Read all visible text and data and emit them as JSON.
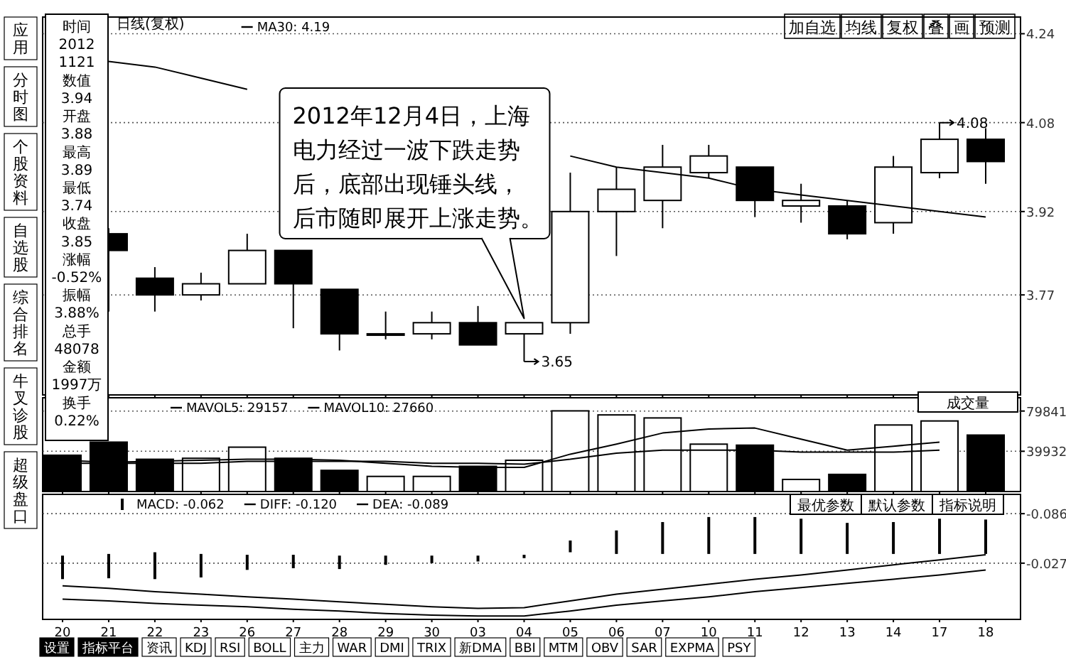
{
  "chart_data": [
    {
      "type": "candlestick",
      "title": "日线(复权)",
      "categories": [
        "20",
        "21",
        "22",
        "23",
        "26",
        "27",
        "28",
        "29",
        "30",
        "03",
        "04",
        "05",
        "06",
        "07",
        "10",
        "11",
        "12",
        "13",
        "14",
        "17",
        "18"
      ],
      "ohlc": [
        null,
        [
          3.88,
          3.89,
          3.74,
          3.85
        ],
        [
          3.8,
          3.82,
          3.74,
          3.77
        ],
        [
          3.77,
          3.81,
          3.76,
          3.79
        ],
        [
          3.79,
          3.88,
          3.79,
          3.85
        ],
        [
          3.85,
          3.85,
          3.71,
          3.79
        ],
        [
          3.78,
          3.78,
          3.67,
          3.7
        ],
        [
          3.7,
          3.74,
          3.69,
          3.7
        ],
        [
          3.7,
          3.74,
          3.69,
          3.72
        ],
        [
          3.72,
          3.75,
          3.68,
          3.68
        ],
        [
          3.7,
          3.72,
          3.65,
          3.72
        ],
        [
          3.72,
          3.99,
          3.7,
          3.92
        ],
        [
          3.92,
          4.0,
          3.84,
          3.96
        ],
        [
          3.94,
          4.04,
          3.89,
          4.0
        ],
        [
          3.99,
          4.04,
          3.98,
          4.02
        ],
        [
          4.0,
          4.0,
          3.91,
          3.94
        ],
        [
          3.93,
          3.97,
          3.9,
          3.94
        ],
        [
          3.93,
          3.94,
          3.87,
          3.88
        ],
        [
          3.9,
          4.02,
          3.88,
          4.0
        ],
        [
          3.99,
          4.08,
          3.98,
          4.05
        ],
        [
          4.05,
          4.07,
          3.97,
          4.01
        ]
      ],
      "series": [
        {
          "name": "MA30: 4.19",
          "type": "line",
          "color": "#000000",
          "values": [
            null,
            4.19,
            4.18,
            4.16,
            4.14,
            null,
            null,
            null,
            null,
            null,
            null,
            4.02,
            4.0,
            3.99,
            3.98,
            3.96,
            3.95,
            3.94,
            3.93,
            3.92,
            3.91
          ]
        }
      ],
      "ylim": [
        3.59,
        4.27
      ],
      "yticks": [
        3.77,
        3.92,
        4.08,
        4.24
      ],
      "grid": "y",
      "legend": "top left",
      "tick_labels": "y",
      "annotations": [
        "2012年12月4日，上海电力经过一波下跌走势后，底部出现锤头线，后市随即展开上涨走势。",
        {
          "text": "3.65",
          "x": "04",
          "y": 3.65
        },
        {
          "text": "4.08",
          "x": "17",
          "y": 4.08
        }
      ]
    },
    {
      "type": "bar",
      "categories": [
        "20",
        "21",
        "22",
        "23",
        "26",
        "27",
        "28",
        "29",
        "30",
        "03",
        "04",
        "05",
        "06",
        "07",
        "10",
        "11",
        "12",
        "13",
        "14",
        "17",
        "18"
      ],
      "series": [
        {
          "type": "bar",
          "values": [
            36000,
            49000,
            32000,
            33000,
            44000,
            33000,
            21000,
            15000,
            15000,
            25000,
            31000,
            80000,
            76000,
            73000,
            47000,
            46000,
            12000,
            17000,
            66000,
            70000,
            56000
          ],
          "colors": [
            "#000000",
            "#000000",
            "#000000",
            "#ffffff",
            "#ffffff",
            "#000000",
            "#000000",
            "#ffffff",
            "#ffffff",
            "#000000",
            "#ffffff",
            "#ffffff",
            "#ffffff",
            "#ffffff",
            "#ffffff",
            "#000000",
            "#ffffff",
            "#000000",
            "#ffffff",
            "#ffffff",
            "#000000"
          ]
        },
        {
          "name": "MAVOL5: 29157",
          "type": "line",
          "color": "#000000",
          "values": [
            31000,
            29000,
            30000,
            31000,
            32000,
            32000,
            31000,
            28000,
            25000,
            24000,
            24000,
            37000,
            47000,
            58000,
            62000,
            63000,
            52000,
            41000,
            45000,
            49000,
            null
          ]
        },
        {
          "name": "MAVOL10: 27660",
          "type": "line",
          "color": "#000000",
          "values": [
            28000,
            28000,
            28000,
            28000,
            30000,
            30000,
            30000,
            30000,
            28000,
            28000,
            27000,
            32000,
            38000,
            41000,
            41000,
            41000,
            39000,
            39000,
            39000,
            41000,
            null
          ]
        }
      ],
      "ylim": [
        0,
        93000
      ],
      "yticks": [
        39932,
        79841
      ],
      "grid": "y",
      "legend": "top left",
      "tick_labels": "y",
      "annotations": [
        "成交量"
      ]
    },
    {
      "type": "bar",
      "categories": [
        "20",
        "21",
        "22",
        "23",
        "26",
        "27",
        "28",
        "29",
        "30",
        "03",
        "04",
        "05",
        "06",
        "07",
        "10",
        "11",
        "12",
        "13",
        "14",
        "17",
        "18"
      ],
      "series": [
        {
          "name": "MACD: -0.062",
          "type": "bar",
          "color": "#000000",
          "base": [
            -0.036,
            -0.038,
            -0.04,
            -0.038,
            -0.037,
            -0.037,
            -0.036,
            -0.036,
            -0.036,
            -0.036,
            -0.037,
            -0.04,
            -0.038,
            -0.038,
            -0.038,
            -0.038,
            -0.038,
            -0.038,
            -0.038,
            -0.038,
            -0.038
          ],
          "values": [
            0.028,
            0.029,
            0.032,
            0.028,
            0.018,
            0.016,
            0.016,
            0.011,
            0.009,
            0.007,
            0.004,
            -0.014,
            -0.028,
            -0.038,
            -0.044,
            -0.044,
            -0.042,
            -0.037,
            -0.038,
            -0.042,
            -0.041
          ]
        },
        {
          "name": "DIFF: -0.120",
          "type": "line",
          "color": "#000000",
          "values": [
            0.0,
            0.003,
            0.007,
            0.01,
            0.013,
            0.016,
            0.019,
            0.022,
            0.025,
            0.027,
            0.026,
            0.018,
            0.01,
            0.004,
            -0.002,
            -0.008,
            -0.013,
            -0.019,
            -0.025,
            -0.031,
            -0.037
          ]
        },
        {
          "name": "DEA: -0.089",
          "type": "line",
          "color": "#000000",
          "values": [
            0.016,
            0.018,
            0.021,
            0.023,
            0.025,
            0.028,
            0.03,
            0.033,
            0.035,
            0.036,
            0.036,
            0.03,
            0.023,
            0.018,
            0.013,
            0.007,
            0.002,
            -0.003,
            -0.008,
            -0.013,
            -0.019
          ]
        }
      ],
      "ylim": [
        0.04,
        -0.109
      ],
      "yticks": [
        -0.086,
        -0.027
      ],
      "grid": "y",
      "legend": "top left",
      "annotations": [
        "最优参数",
        "默认参数",
        "指标说明"
      ]
    },
    {
      "type": "other",
      "annotations": [
        "时间",
        "2012",
        "1121",
        "数值",
        "3.94",
        "开盘",
        "3.88",
        "最高",
        "3.89",
        "最低",
        "3.74",
        "收盘",
        "3.85",
        "涨幅",
        "-0.52%",
        "振幅",
        "3.88%",
        "总手",
        "48078",
        "金额",
        "1997万",
        "换手",
        "0.22%"
      ]
    },
    {
      "type": "other",
      "annotations": [
        "应用",
        "分时图",
        "个股资料",
        "自选股",
        "综合排名",
        "牛叉诊股",
        "超级盘口"
      ]
    },
    {
      "type": "other",
      "annotations": [
        "加自选",
        "均线",
        "复权",
        "叠",
        "画",
        "预测"
      ]
    },
    {
      "type": "other",
      "annotations": [
        "设置",
        "指标平台",
        "资讯",
        "KDJ",
        "RSI",
        "BOLL",
        "主力",
        "WAR",
        "DMI",
        "TRIX",
        "新DMA",
        "BBI",
        "MTM",
        "OBV",
        "SAR",
        "EXPMA",
        "PSY"
      ]
    }
  ]
}
